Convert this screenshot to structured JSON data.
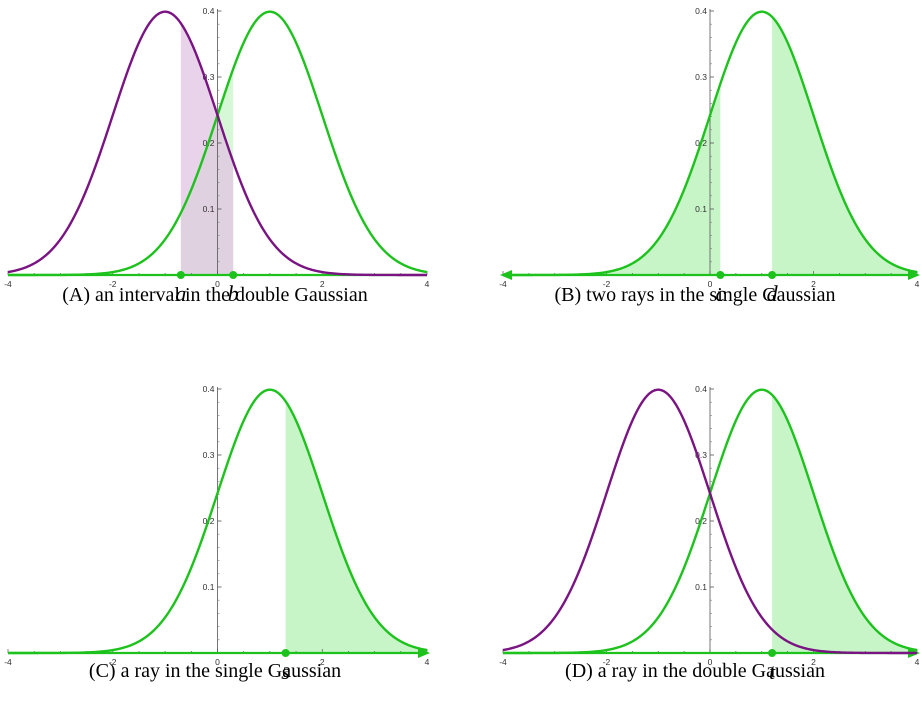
{
  "colors": {
    "green": "#1dc21d",
    "purple": "#7a1482",
    "green_fill": "#c8f5c8",
    "purple_fill": "#e2c4e3"
  },
  "axis": {
    "xlim": [
      -4,
      4
    ],
    "ylim": [
      0,
      0.4
    ],
    "x_tick_labels": [
      "-4",
      "-2",
      "0",
      "2",
      "4"
    ],
    "y_tick_labels": [
      "0.1",
      "0.2",
      "0.3",
      "0.4"
    ]
  },
  "chart_data": [
    {
      "type": "area",
      "panel": "A",
      "caption": "(A) an interval in the double Gaussian",
      "series": [
        {
          "mean": 1,
          "sd": 1,
          "color": "green"
        },
        {
          "mean": -1,
          "sd": 1,
          "color": "purple"
        }
      ],
      "shaded": [
        {
          "from": -0.7,
          "to": 0.3,
          "series": "both"
        }
      ],
      "points": [
        {
          "x": -0.7,
          "label": "a"
        },
        {
          "x": 0.3,
          "label": "b"
        }
      ],
      "arrows": {
        "left": false,
        "right": false
      }
    },
    {
      "type": "area",
      "panel": "B",
      "caption": "(B) two rays in the single Gaussian",
      "series": [
        {
          "mean": 1,
          "sd": 1,
          "color": "green"
        }
      ],
      "shaded": [
        {
          "from": -4,
          "to": 0.2,
          "series": "green"
        },
        {
          "from": 1.2,
          "to": 4,
          "series": "green"
        }
      ],
      "points": [
        {
          "x": 0.2,
          "label": "c"
        },
        {
          "x": 1.2,
          "label": "d"
        }
      ],
      "arrows": {
        "left": true,
        "right": true
      }
    },
    {
      "type": "area",
      "panel": "C",
      "caption": "(C) a ray in the single Gaussian",
      "series": [
        {
          "mean": 1,
          "sd": 1,
          "color": "green"
        }
      ],
      "shaded": [
        {
          "from": 1.3,
          "to": 4,
          "series": "green"
        }
      ],
      "points": [
        {
          "x": 1.3,
          "label": "s"
        }
      ],
      "arrows": {
        "left": false,
        "right": true
      }
    },
    {
      "type": "area",
      "panel": "D",
      "caption": "(D) a ray in the double Gaussian",
      "series": [
        {
          "mean": 1,
          "sd": 1,
          "color": "green"
        },
        {
          "mean": -1,
          "sd": 1,
          "color": "purple"
        }
      ],
      "shaded": [
        {
          "from": 1.2,
          "to": 4,
          "series": "green"
        }
      ],
      "points": [
        {
          "x": 1.2,
          "label": "t"
        }
      ],
      "arrows": {
        "left": false,
        "right": true
      }
    }
  ]
}
